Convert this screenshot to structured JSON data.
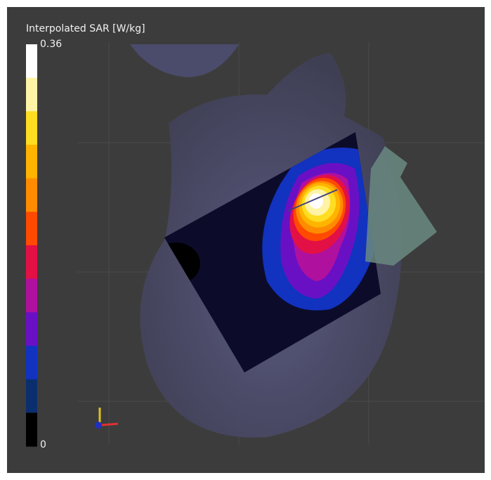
{
  "viewer": {
    "colorbar": {
      "title": "Interpolated SAR [W/kg]",
      "max_label": "0.36",
      "min_label": "0",
      "colors": [
        "#ffffff",
        "#fff3a6",
        "#ffdd22",
        "#ffb400",
        "#ff8c00",
        "#ff4a00",
        "#e31045",
        "#b0109e",
        "#6a10c4",
        "#1232c0",
        "#0b2f6e",
        "#000000"
      ]
    }
  }
}
